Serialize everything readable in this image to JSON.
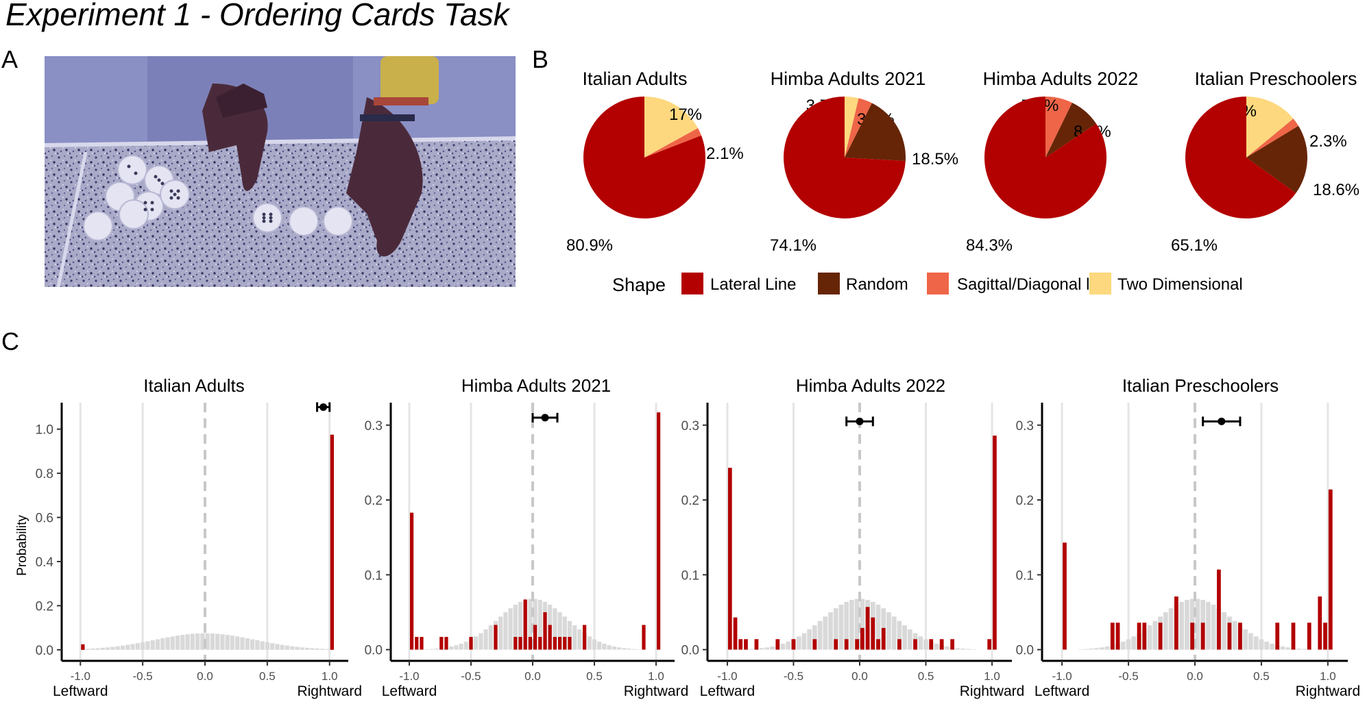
{
  "title": "Experiment 1 - Ordering Cards Task",
  "panels": {
    "a": "A",
    "b": "B",
    "c": "C"
  },
  "photo": {
    "name": "ordering-cards-photo"
  },
  "colors": {
    "lateral": "#b30000",
    "random": "#662506",
    "sagittal": "#ef6548",
    "two_dim": "#fdd87e",
    "bar": "#b30000",
    "prior": "#d9d9d9",
    "grid": "#e5e5e5",
    "zero_line": "#c8c8c8"
  },
  "legend": {
    "title": "Shape",
    "items": [
      {
        "key": "lateral",
        "label": "Lateral Line"
      },
      {
        "key": "random",
        "label": "Random"
      },
      {
        "key": "sagittal",
        "label": "Sagittal/Diagonal line"
      },
      {
        "key": "two_dim",
        "label": "Two Dimensional"
      }
    ]
  },
  "chart_data": [
    {
      "type": "pie",
      "panel": "B",
      "title": "Italian Adults",
      "slices": [
        {
          "key": "two_dim",
          "value": 17.0,
          "label": "17%"
        },
        {
          "key": "sagittal",
          "value": 2.1,
          "label": "2.1%"
        },
        {
          "key": "lateral",
          "value": 80.9,
          "label": "80.9%"
        }
      ]
    },
    {
      "type": "pie",
      "panel": "B",
      "title": "Himba Adults 2021",
      "slices": [
        {
          "key": "two_dim",
          "value": 3.7,
          "label": "3.7%"
        },
        {
          "key": "sagittal",
          "value": 3.7,
          "label": "3.7%"
        },
        {
          "key": "random",
          "value": 18.5,
          "label": "18.5%"
        },
        {
          "key": "lateral",
          "value": 74.1,
          "label": "74.1%"
        }
      ]
    },
    {
      "type": "pie",
      "panel": "B",
      "title": "Himba Adults 2022",
      "slices": [
        {
          "key": "sagittal",
          "value": 7.2,
          "label": "7.2%"
        },
        {
          "key": "random",
          "value": 8.4,
          "label": "8.4%"
        },
        {
          "key": "lateral",
          "value": 84.3,
          "label": "84.3%"
        }
      ]
    },
    {
      "type": "pie",
      "panel": "B",
      "title": "Italian Preschoolers",
      "slices": [
        {
          "key": "two_dim",
          "value": 14.0,
          "label": "14%"
        },
        {
          "key": "sagittal",
          "value": 2.3,
          "label": "2.3%"
        },
        {
          "key": "random",
          "value": 18.6,
          "label": "18.6%"
        },
        {
          "key": "lateral",
          "value": 65.1,
          "label": "65.1%"
        }
      ]
    },
    {
      "type": "bar",
      "panel": "C",
      "title": "Italian Adults",
      "ylabel": "Probability",
      "xlim": [
        -1.15,
        1.15
      ],
      "ylim": [
        -0.05,
        1.12
      ],
      "yticks": [
        0.0,
        0.2,
        0.4,
        0.6,
        0.8,
        1.0
      ],
      "ytick_labels": [
        "0.0",
        "0.2",
        "0.4",
        "0.6",
        "0.8",
        "1.0"
      ],
      "xticks": [
        -1.0,
        -0.5,
        0.0,
        0.5,
        1.0
      ],
      "xtick_labels": [
        "-1.0",
        "-0.5",
        "0.0",
        "0.5",
        "1.0"
      ],
      "x_left_label": "Leftward",
      "x_right_label": "Rightward",
      "prior_sd": 0.4,
      "prior_peak": 0.075,
      "bars": [
        {
          "x": -0.98,
          "y": 0.025
        },
        {
          "x": 1.02,
          "y": 0.975
        }
      ],
      "mean": 0.95,
      "ci": [
        0.9,
        1.0
      ],
      "mean_y": 1.1
    },
    {
      "type": "bar",
      "panel": "C",
      "title": "Himba Adults 2021",
      "ylabel": "",
      "xlim": [
        -1.15,
        1.15
      ],
      "ylim": [
        -0.015,
        0.33
      ],
      "yticks": [
        0.0,
        0.1,
        0.2,
        0.3
      ],
      "ytick_labels": [
        "0.0",
        "0.1",
        "0.2",
        "0.3"
      ],
      "xticks": [
        -1.0,
        -0.5,
        0.0,
        0.5,
        1.0
      ],
      "xtick_labels": [
        "-1.0",
        "-0.5",
        "0.0",
        "0.5",
        "1.0"
      ],
      "x_left_label": "Leftward",
      "x_right_label": "Rightward",
      "prior_sd": 0.28,
      "prior_peak": 0.068,
      "bars": [
        {
          "x": -0.98,
          "y": 0.183
        },
        {
          "x": -0.94,
          "y": 0.017
        },
        {
          "x": -0.9,
          "y": 0.017
        },
        {
          "x": -0.74,
          "y": 0.017
        },
        {
          "x": -0.7,
          "y": 0.017
        },
        {
          "x": -0.5,
          "y": 0.017
        },
        {
          "x": -0.3,
          "y": 0.033
        },
        {
          "x": -0.14,
          "y": 0.017
        },
        {
          "x": -0.1,
          "y": 0.017
        },
        {
          "x": -0.06,
          "y": 0.067
        },
        {
          "x": -0.02,
          "y": 0.017
        },
        {
          "x": 0.02,
          "y": 0.033
        },
        {
          "x": 0.06,
          "y": 0.017
        },
        {
          "x": 0.1,
          "y": 0.05
        },
        {
          "x": 0.14,
          "y": 0.033
        },
        {
          "x": 0.18,
          "y": 0.017
        },
        {
          "x": 0.22,
          "y": 0.017
        },
        {
          "x": 0.26,
          "y": 0.017
        },
        {
          "x": 0.3,
          "y": 0.017
        },
        {
          "x": 0.42,
          "y": 0.033
        },
        {
          "x": 0.9,
          "y": 0.033
        },
        {
          "x": 1.02,
          "y": 0.317
        }
      ],
      "mean": 0.1,
      "ci": [
        0.0,
        0.2
      ],
      "mean_y": 0.31
    },
    {
      "type": "bar",
      "panel": "C",
      "title": "Himba Adults 2022",
      "ylabel": "",
      "xlim": [
        -1.15,
        1.15
      ],
      "ylim": [
        -0.015,
        0.33
      ],
      "yticks": [
        0.0,
        0.1,
        0.2,
        0.3
      ],
      "ytick_labels": [
        "0.0",
        "0.1",
        "0.2",
        "0.3"
      ],
      "xticks": [
        -1.0,
        -0.5,
        0.0,
        0.5,
        1.0
      ],
      "xtick_labels": [
        "-1.0",
        "-0.5",
        "0.0",
        "0.5",
        "1.0"
      ],
      "x_left_label": "Leftward",
      "x_right_label": "Rightward",
      "prior_sd": 0.28,
      "prior_peak": 0.068,
      "bars": [
        {
          "x": -0.98,
          "y": 0.243
        },
        {
          "x": -0.94,
          "y": 0.043
        },
        {
          "x": -0.9,
          "y": 0.014
        },
        {
          "x": -0.86,
          "y": 0.014
        },
        {
          "x": -0.78,
          "y": 0.014
        },
        {
          "x": -0.62,
          "y": 0.014
        },
        {
          "x": -0.5,
          "y": 0.014
        },
        {
          "x": -0.34,
          "y": 0.014
        },
        {
          "x": -0.18,
          "y": 0.014
        },
        {
          "x": -0.1,
          "y": 0.014
        },
        {
          "x": -0.02,
          "y": 0.014
        },
        {
          "x": 0.02,
          "y": 0.029
        },
        {
          "x": 0.06,
          "y": 0.057
        },
        {
          "x": 0.1,
          "y": 0.043
        },
        {
          "x": 0.14,
          "y": 0.014
        },
        {
          "x": 0.18,
          "y": 0.029
        },
        {
          "x": 0.3,
          "y": 0.014
        },
        {
          "x": 0.42,
          "y": 0.014
        },
        {
          "x": 0.54,
          "y": 0.014
        },
        {
          "x": 0.62,
          "y": 0.014
        },
        {
          "x": 0.7,
          "y": 0.014
        },
        {
          "x": 0.98,
          "y": 0.014
        },
        {
          "x": 1.02,
          "y": 0.286
        }
      ],
      "mean": 0.0,
      "ci": [
        -0.1,
        0.1
      ],
      "mean_y": 0.305
    },
    {
      "type": "bar",
      "panel": "C",
      "title": "Italian Preschoolers",
      "ylabel": "",
      "xlim": [
        -1.15,
        1.15
      ],
      "ylim": [
        -0.015,
        0.33
      ],
      "yticks": [
        0.0,
        0.1,
        0.2,
        0.3
      ],
      "ytick_labels": [
        "0.0",
        "0.1",
        "0.2",
        "0.3"
      ],
      "xticks": [
        -1.0,
        -0.5,
        0.0,
        0.5,
        1.0
      ],
      "xtick_labels": [
        "-1.0",
        "-0.5",
        "0.0",
        "0.5",
        "1.0"
      ],
      "x_left_label": "Leftward",
      "x_right_label": "Rightward",
      "prior_sd": 0.28,
      "prior_peak": 0.068,
      "bars": [
        {
          "x": -0.98,
          "y": 0.143
        },
        {
          "x": -0.62,
          "y": 0.036
        },
        {
          "x": -0.58,
          "y": 0.036
        },
        {
          "x": -0.42,
          "y": 0.036
        },
        {
          "x": -0.38,
          "y": 0.036
        },
        {
          "x": -0.26,
          "y": 0.036
        },
        {
          "x": -0.14,
          "y": 0.071
        },
        {
          "x": -0.02,
          "y": 0.036
        },
        {
          "x": 0.06,
          "y": 0.036
        },
        {
          "x": 0.18,
          "y": 0.107
        },
        {
          "x": 0.26,
          "y": 0.036
        },
        {
          "x": 0.34,
          "y": 0.036
        },
        {
          "x": 0.62,
          "y": 0.036
        },
        {
          "x": 0.74,
          "y": 0.036
        },
        {
          "x": 0.86,
          "y": 0.036
        },
        {
          "x": 0.94,
          "y": 0.071
        },
        {
          "x": 0.98,
          "y": 0.036
        },
        {
          "x": 1.02,
          "y": 0.214
        }
      ],
      "mean": 0.2,
      "ci": [
        0.06,
        0.34
      ],
      "mean_y": 0.305
    }
  ]
}
